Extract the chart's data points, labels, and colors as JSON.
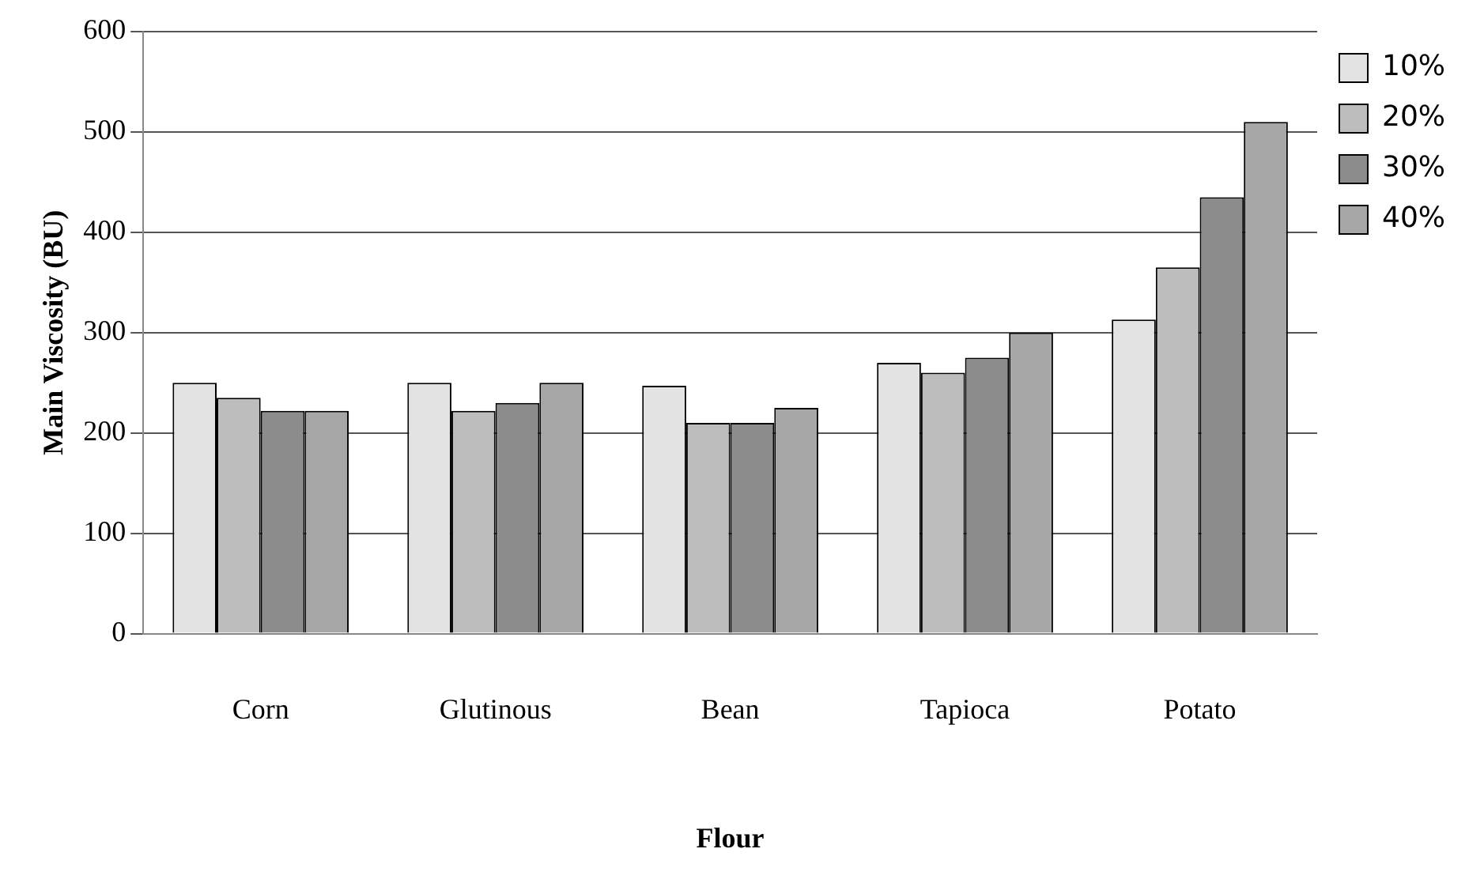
{
  "chart_data": {
    "type": "bar",
    "xlabel": "Flour",
    "ylabel": "Main Viscosity (BU)",
    "categories": [
      "Corn",
      "Glutinous",
      "Bean",
      "Tapioca",
      "Potato"
    ],
    "series": [
      {
        "name": "10%",
        "color": "#e3e3e3",
        "values": [
          250,
          250,
          247,
          270,
          313
        ]
      },
      {
        "name": "20%",
        "color": "#bdbdbd",
        "values": [
          235,
          222,
          210,
          260,
          365
        ]
      },
      {
        "name": "30%",
        "color": "#8c8c8c",
        "values": [
          222,
          230,
          210,
          275,
          435
        ]
      },
      {
        "name": "40%",
        "color": "#a6a6a6",
        "values": [
          222,
          250,
          225,
          300,
          510
        ]
      }
    ],
    "ylim": [
      0,
      600
    ],
    "yticks": [
      0,
      100,
      200,
      300,
      400,
      500,
      600
    ],
    "grid": "y",
    "legend": "top right"
  }
}
